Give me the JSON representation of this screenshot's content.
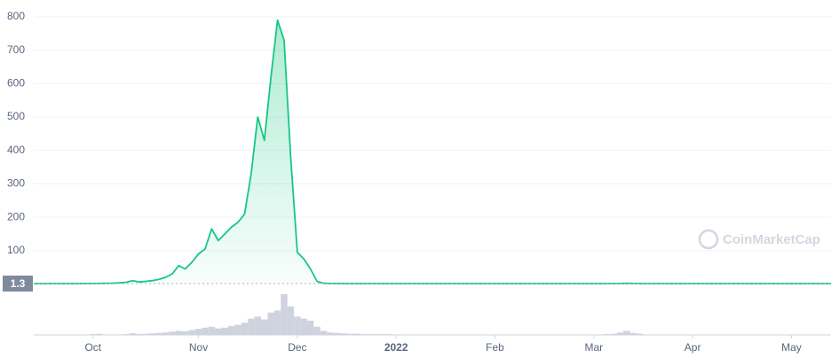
{
  "chart_data": {
    "type": "area",
    "watermark": "CoinMarketCap",
    "current_price": 1.3,
    "categories": [
      null,
      null,
      null,
      null,
      null,
      null,
      null,
      null,
      null,
      "Oct",
      null,
      null,
      null,
      null,
      null,
      null,
      null,
      null,
      null,
      null,
      null,
      null,
      null,
      null,
      null,
      "Nov",
      null,
      null,
      null,
      null,
      null,
      null,
      null,
      null,
      null,
      null,
      null,
      null,
      null,
      null,
      "Dec",
      null,
      null,
      null,
      null,
      null,
      null,
      null,
      null,
      null,
      null,
      null,
      null,
      null,
      null,
      "2022",
      null,
      null,
      null,
      null,
      null,
      null,
      null,
      null,
      null,
      null,
      null,
      null,
      null,
      null,
      "Feb",
      null,
      null,
      null,
      null,
      null,
      null,
      null,
      null,
      null,
      null,
      null,
      null,
      null,
      null,
      "Mar",
      null,
      null,
      null,
      null,
      null,
      null,
      null,
      null,
      null,
      null,
      null,
      null,
      null,
      null,
      "Apr",
      null,
      null,
      null,
      null,
      null,
      null,
      null,
      null,
      null,
      null,
      null,
      null,
      null,
      null,
      "May",
      null,
      null,
      null,
      null,
      null,
      null
    ],
    "values": [
      1.1,
      1.1,
      1.2,
      1.2,
      1.2,
      1.3,
      1.3,
      1.4,
      1.5,
      1.6,
      1.8,
      2,
      2.5,
      3.5,
      5,
      10,
      6,
      8,
      10,
      14,
      20,
      30,
      55,
      45,
      65,
      90,
      105,
      165,
      130,
      150,
      170,
      185,
      210,
      330,
      500,
      430,
      620,
      790,
      730,
      380,
      95,
      75,
      45,
      8,
      2,
      1.6,
      1.5,
      1.4,
      1.4,
      1.3,
      1.3,
      1.3,
      1.3,
      1.3,
      1.3,
      1.3,
      1.3,
      1.3,
      1.3,
      1.3,
      1.3,
      1.3,
      1.3,
      1.3,
      1.3,
      1.3,
      1.3,
      1.3,
      1.3,
      1.3,
      1.3,
      1.3,
      1.3,
      1.3,
      1.3,
      1.3,
      1.3,
      1.3,
      1.3,
      1.3,
      1.3,
      1.3,
      1.3,
      1.3,
      1.3,
      1.3,
      1.3,
      1.3,
      1.4,
      1.6,
      2.2,
      1.6,
      1.4,
      1.3,
      1.3,
      1.3,
      1.3,
      1.3,
      1.3,
      1.3,
      1.3,
      1.3,
      1.3,
      1.3,
      1.3,
      1.3,
      1.3,
      1.3,
      1.3,
      1.3,
      1.3,
      1.3,
      1.3,
      1.3,
      1.3,
      1.3,
      1.3,
      1.3,
      1.3,
      1.3,
      1.3,
      1.3
    ],
    "color": "#16c784",
    "ylim": [
      0,
      800
    ],
    "yticks": [
      100,
      200,
      300,
      400,
      500,
      600,
      700,
      800
    ],
    "grid": true,
    "volume": {
      "color": "#cfd3de",
      "ylim": [
        0,
        100
      ],
      "values": [
        0,
        0,
        0,
        0,
        0,
        0,
        0,
        0,
        0,
        2,
        3,
        1,
        1,
        1,
        2,
        4,
        2,
        3,
        4,
        5,
        6,
        8,
        10,
        9,
        12,
        15,
        18,
        20,
        16,
        18,
        22,
        25,
        30,
        40,
        45,
        38,
        55,
        60,
        100,
        70,
        45,
        40,
        35,
        20,
        10,
        6,
        5,
        4,
        3,
        3,
        2,
        2,
        2,
        2,
        2,
        1,
        1,
        1,
        1,
        1,
        1,
        1,
        1,
        1,
        1,
        1,
        1,
        1,
        1,
        1,
        1,
        1,
        1,
        1,
        1,
        1,
        1,
        1,
        1,
        1,
        1,
        1,
        1,
        1,
        1,
        1,
        1,
        2,
        3,
        6,
        10,
        5,
        3,
        1,
        1,
        1,
        1,
        1,
        1,
        1,
        1,
        1,
        1,
        1,
        1,
        1,
        1,
        1,
        1,
        1,
        1,
        1,
        1,
        1,
        1,
        1,
        1,
        1,
        1,
        1,
        1,
        1
      ]
    }
  }
}
